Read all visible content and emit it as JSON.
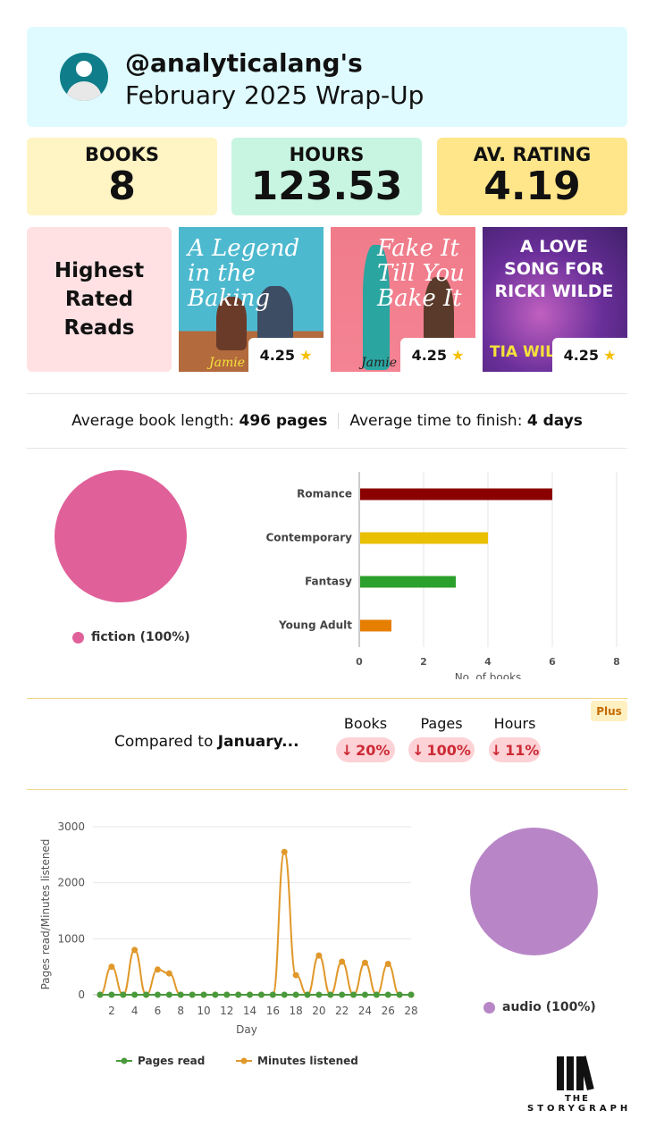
{
  "header": {
    "username": "@analyticalang's",
    "subtitle": "February 2025 Wrap-Up"
  },
  "stats": {
    "books_label": "BOOKS",
    "books_value": "8",
    "hours_label": "HOURS",
    "hours_value": "123.53",
    "rating_label": "AV. RATING",
    "rating_value": "4.19"
  },
  "highest_rated": {
    "label_line1": "Highest",
    "label_line2": "Rated",
    "label_line3": "Reads",
    "books": [
      {
        "cover_title": "A Legend in the Baking",
        "cover_author": "Jamie",
        "rating": "4.25"
      },
      {
        "cover_title": "Fake It Till You Bake It",
        "cover_author": "Jamie W",
        "rating": "4.25"
      },
      {
        "cover_title": "A LOVE SONG FOR RICKI WILDE",
        "cover_author": "TIA WIL",
        "rating": "4.25"
      }
    ]
  },
  "averages": {
    "length_label": "Average book length:",
    "length_value": "496 pages",
    "time_label": "Average time to finish:",
    "time_value": "4 days"
  },
  "colors": {
    "fiction": "#e0609a",
    "romance": "#8b0000",
    "contemporary": "#e8c000",
    "fantasy": "#2ca02c",
    "young_adult": "#e67e00",
    "audio": "#b886c7",
    "pages_read": "#4a9a3c",
    "minutes_listened": "#e0982a",
    "decline": "#cc2a35"
  },
  "comparison": {
    "label_prefix": "Compared to",
    "label_month": "January...",
    "plus_badge": "Plus",
    "items": [
      {
        "heading": "Books",
        "arrow": "↓",
        "value": "20%"
      },
      {
        "heading": "Pages",
        "arrow": "↓",
        "value": "100%"
      },
      {
        "heading": "Hours",
        "arrow": "↓",
        "value": "11%"
      }
    ]
  },
  "logo": {
    "line1": "THE",
    "line2": "STORYGRAPH"
  },
  "chart_data": [
    {
      "type": "pie",
      "categories": [
        "fiction"
      ],
      "values": [
        100
      ],
      "legend": [
        "fiction (100%)"
      ],
      "colors": [
        "#e0609a"
      ]
    },
    {
      "type": "bar",
      "orientation": "horizontal",
      "categories": [
        "Romance",
        "Contemporary",
        "Fantasy",
        "Young Adult"
      ],
      "values": [
        6,
        4,
        3,
        1
      ],
      "colors": [
        "#8b0000",
        "#e8c000",
        "#2ca02c",
        "#e67e00"
      ],
      "xlabel": "No. of books",
      "xlim": [
        0,
        8
      ],
      "xticks": [
        0,
        2,
        4,
        6,
        8
      ],
      "grid": true
    },
    {
      "type": "line",
      "x": [
        1,
        2,
        3,
        4,
        5,
        6,
        7,
        8,
        9,
        10,
        11,
        12,
        13,
        14,
        15,
        16,
        17,
        18,
        19,
        20,
        21,
        22,
        23,
        24,
        25,
        26,
        27,
        28
      ],
      "xticks": [
        2,
        4,
        6,
        8,
        10,
        12,
        14,
        16,
        18,
        20,
        22,
        24,
        26,
        28
      ],
      "xlabel": "Day",
      "ylabel": "Pages read/Minutes listened",
      "ylim": [
        0,
        3000
      ],
      "yticks": [
        0,
        1000,
        2000,
        3000
      ],
      "grid": true,
      "legend_position": "bottom",
      "series": [
        {
          "name": "Pages read",
          "color": "#4a9a3c",
          "values": [
            0,
            0,
            0,
            0,
            0,
            0,
            0,
            0,
            0,
            0,
            0,
            0,
            0,
            0,
            0,
            0,
            0,
            0,
            0,
            0,
            0,
            0,
            0,
            0,
            0,
            0,
            0,
            0
          ]
        },
        {
          "name": "Minutes listened",
          "color": "#e0982a",
          "values": [
            0,
            500,
            0,
            800,
            0,
            450,
            380,
            0,
            0,
            0,
            0,
            0,
            0,
            0,
            0,
            0,
            2550,
            350,
            0,
            700,
            0,
            590,
            0,
            570,
            0,
            550,
            0,
            0
          ]
        }
      ]
    },
    {
      "type": "pie",
      "categories": [
        "audio"
      ],
      "values": [
        100
      ],
      "legend": [
        "audio (100%)"
      ],
      "colors": [
        "#b886c7"
      ]
    }
  ]
}
